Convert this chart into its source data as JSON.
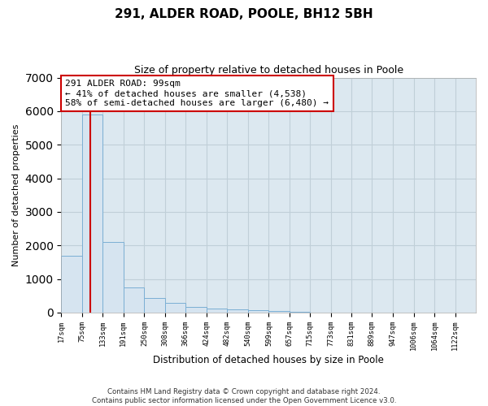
{
  "title": "291, ALDER ROAD, POOLE, BH12 5BH",
  "subtitle": "Size of property relative to detached houses in Poole",
  "xlabel": "Distribution of detached houses by size in Poole",
  "ylabel": "Number of detached properties",
  "annotation_text": "291 ALDER ROAD: 99sqm\n← 41% of detached houses are smaller (4,538)\n58% of semi-detached houses are larger (6,480) →",
  "bin_edges": [
    17,
    75,
    133,
    191,
    250,
    308,
    366,
    424,
    482,
    540,
    599,
    657,
    715,
    773,
    831,
    889,
    947,
    1006,
    1064,
    1122,
    1180
  ],
  "bar_heights": [
    1700,
    5900,
    2100,
    750,
    430,
    280,
    180,
    130,
    90,
    60,
    50,
    20,
    10,
    8,
    5,
    3,
    2,
    2,
    1,
    1
  ],
  "bar_color": "#d6e4f0",
  "bar_edge_color": "#7bafd4",
  "vline_color": "#cc0000",
  "vline_x": 99,
  "ylim": [
    0,
    7000
  ],
  "yticks": [
    0,
    1000,
    2000,
    3000,
    4000,
    5000,
    6000,
    7000
  ],
  "annotation_box_facecolor": "white",
  "annotation_box_edgecolor": "#cc0000",
  "footer_text": "Contains HM Land Registry data © Crown copyright and database right 2024.\nContains public sector information licensed under the Open Government Licence v3.0.",
  "bg_color": "#ffffff",
  "plot_bg_color": "#dce8f0",
  "grid_color": "#c0cfd8"
}
